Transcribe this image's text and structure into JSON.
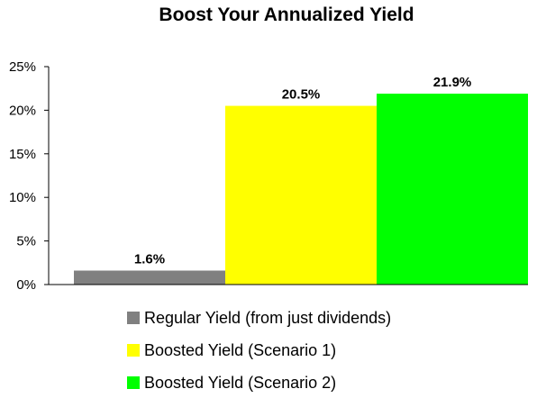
{
  "chart_data": {
    "type": "bar",
    "title": "Boost Your Annualized Yield",
    "categories": [
      "Regular Yield (from just dividends)",
      "Boosted Yield (Scenario 1)",
      "Boosted Yield (Scenario 2)"
    ],
    "values": [
      1.6,
      20.5,
      21.9
    ],
    "data_labels": [
      "1.6%",
      "20.5%",
      "21.9%"
    ],
    "colors": [
      "#808080",
      "#ffff00",
      "#00ff00"
    ],
    "ylim": [
      0,
      25
    ],
    "yticks": [
      0,
      5,
      10,
      15,
      20,
      25
    ],
    "ytick_labels": [
      "0%",
      "5%",
      "10%",
      "15%",
      "20%",
      "25%"
    ],
    "xlabel": "",
    "ylabel": "",
    "grid": false,
    "legend_position": "bottom"
  }
}
